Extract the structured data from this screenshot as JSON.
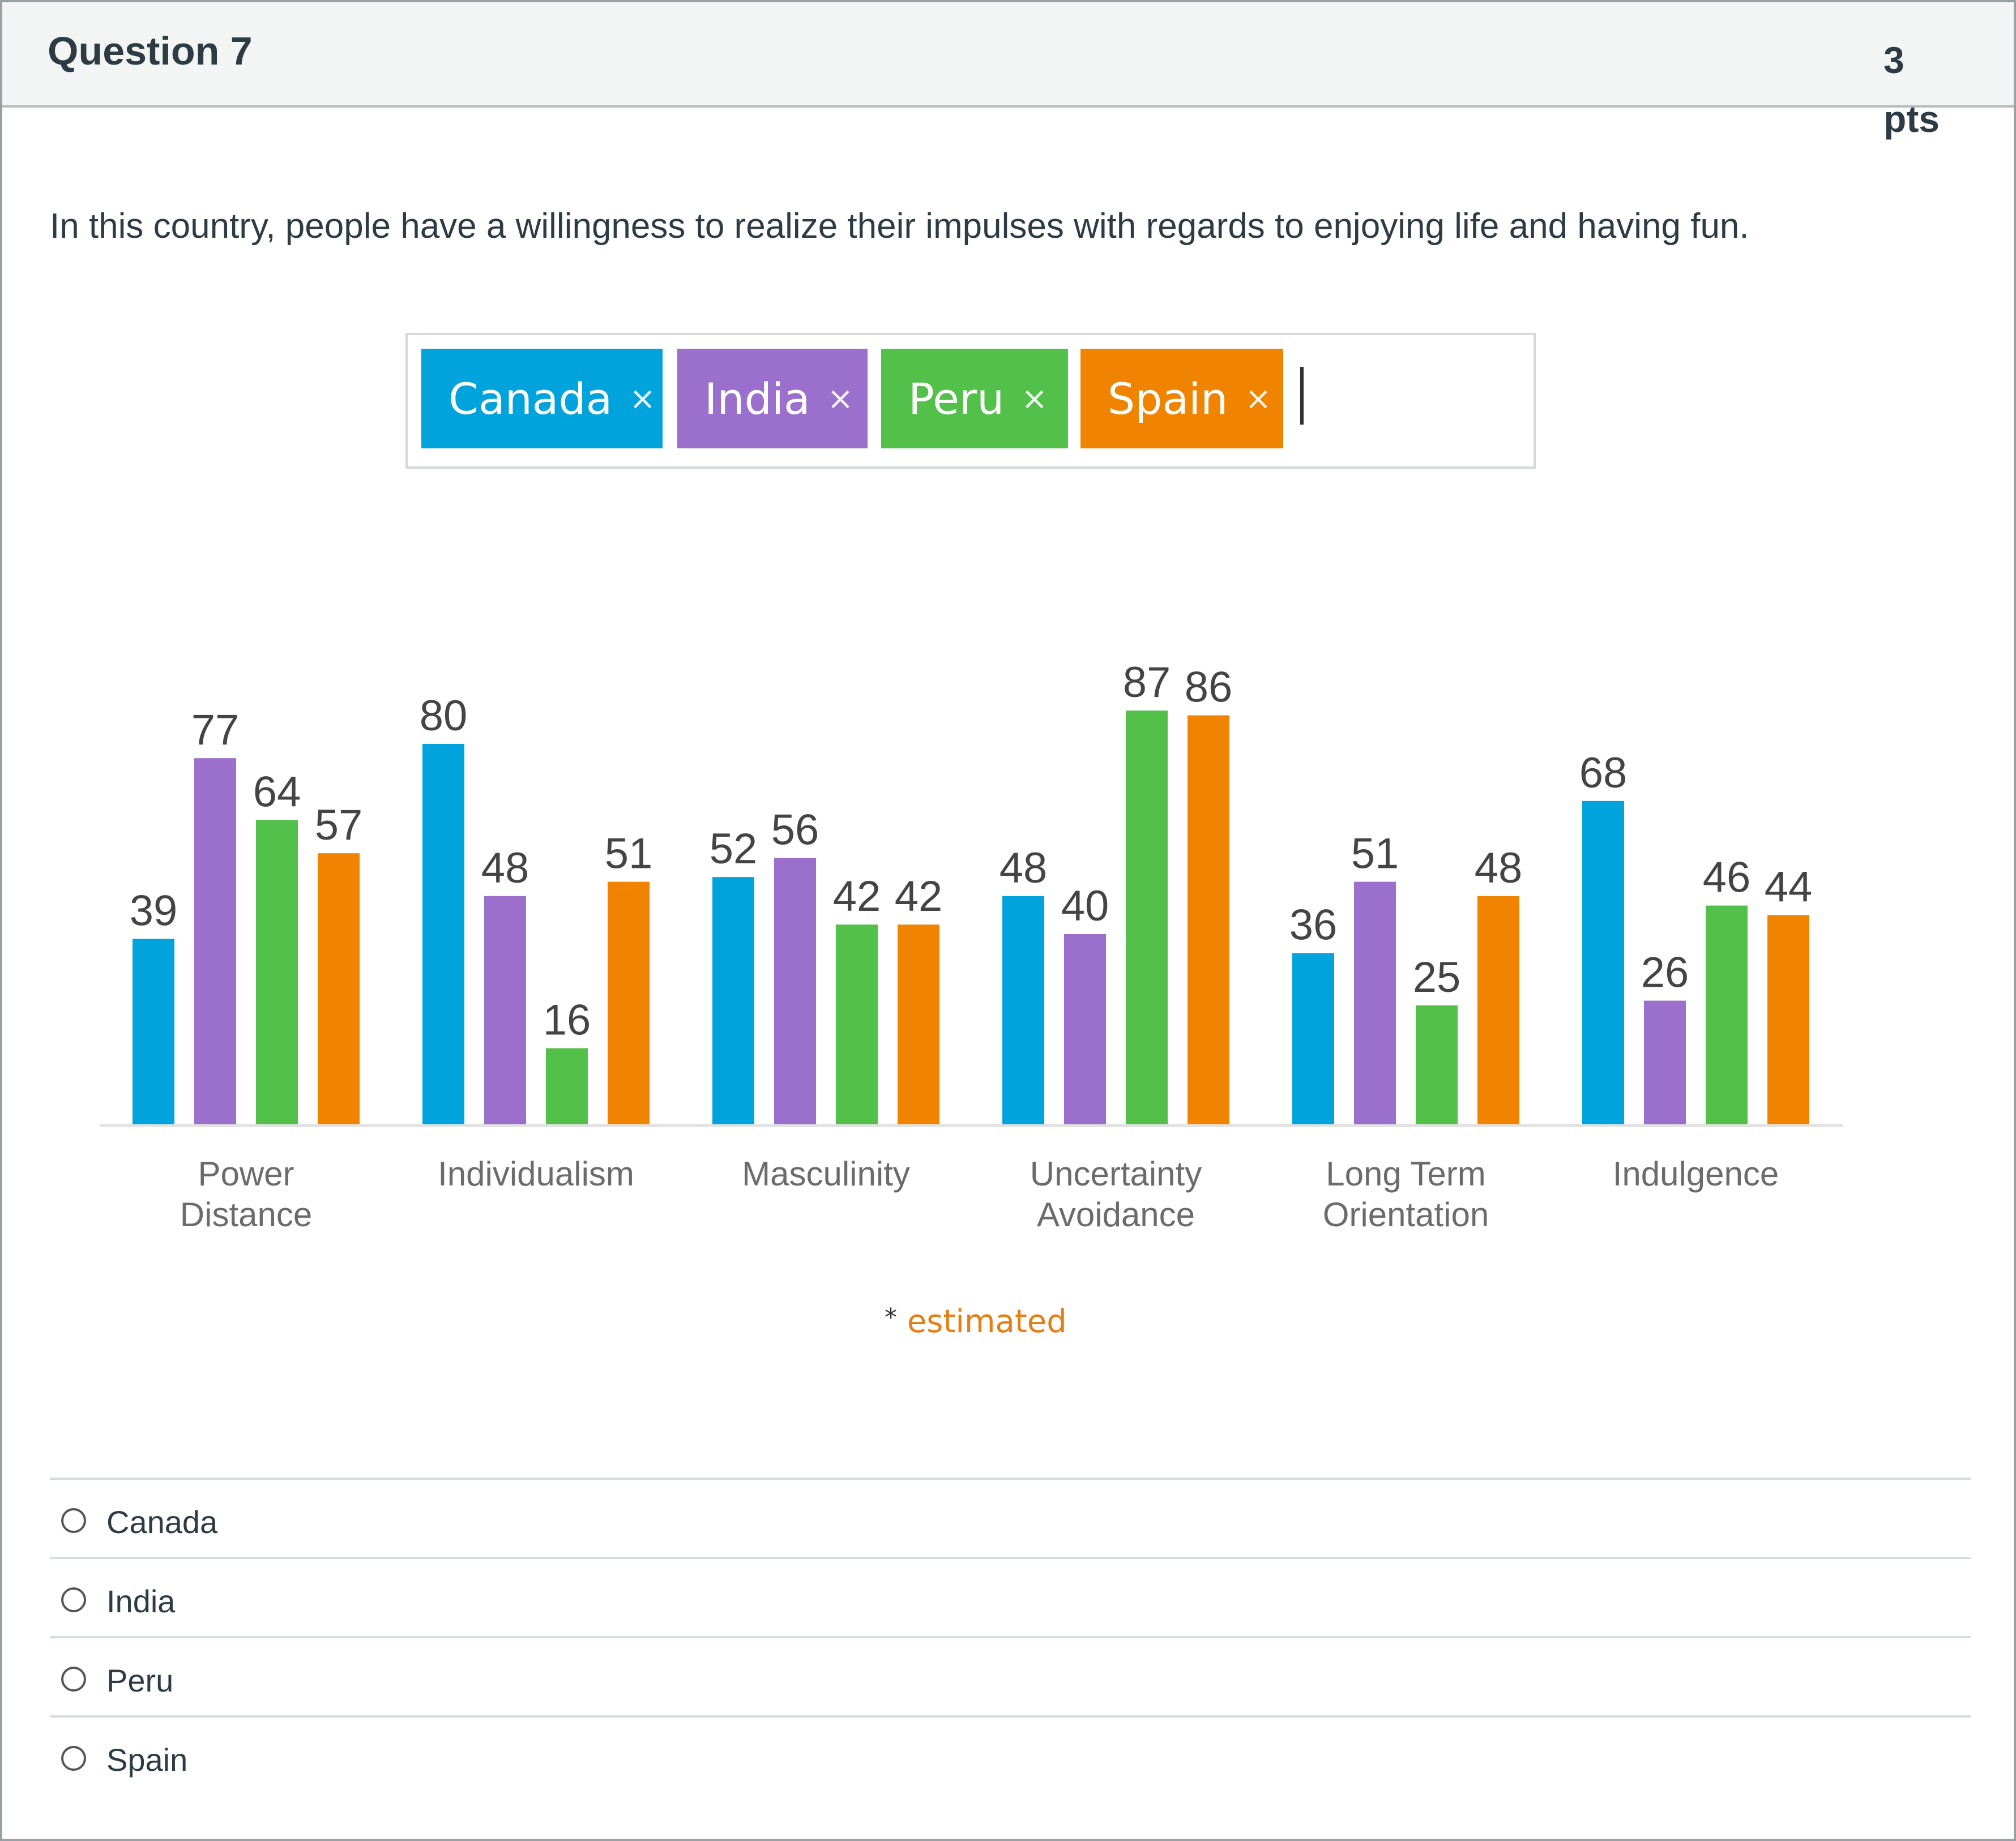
{
  "question": {
    "title": "Question 7",
    "points": "3 pts",
    "text": "In this country, people have a willingness to realize their impulses with regards to enjoying life and having fun."
  },
  "tags": [
    {
      "label": "Canada",
      "color": "#00a3dc"
    },
    {
      "label": "India",
      "color": "#9b6fcc"
    },
    {
      "label": "Peru",
      "color": "#53c04a"
    },
    {
      "label": "Spain",
      "color": "#f08300"
    }
  ],
  "tag_remove_glyph": "×",
  "chart_data": {
    "type": "bar",
    "categories": [
      [
        "Power",
        "Distance"
      ],
      [
        "Individualism"
      ],
      [
        "Masculinity"
      ],
      [
        "Uncertainty",
        "Avoidance"
      ],
      [
        "Long Term",
        "Orientation"
      ],
      [
        "Indulgence"
      ]
    ],
    "series": [
      {
        "name": "Canada",
        "color": "#00a3dc",
        "values": [
          39,
          80,
          52,
          48,
          36,
          68
        ]
      },
      {
        "name": "India",
        "color": "#9b6fcc",
        "values": [
          77,
          48,
          56,
          40,
          51,
          26
        ]
      },
      {
        "name": "Peru",
        "color": "#53c04a",
        "values": [
          64,
          16,
          42,
          87,
          25,
          46
        ]
      },
      {
        "name": "Spain",
        "color": "#f08300",
        "values": [
          57,
          51,
          42,
          86,
          48,
          44
        ]
      }
    ],
    "ylim": [
      0,
      100
    ],
    "footnote_star": "*",
    "footnote_text": "estimated"
  },
  "answers": [
    "Canada",
    "India",
    "Peru",
    "Spain"
  ]
}
